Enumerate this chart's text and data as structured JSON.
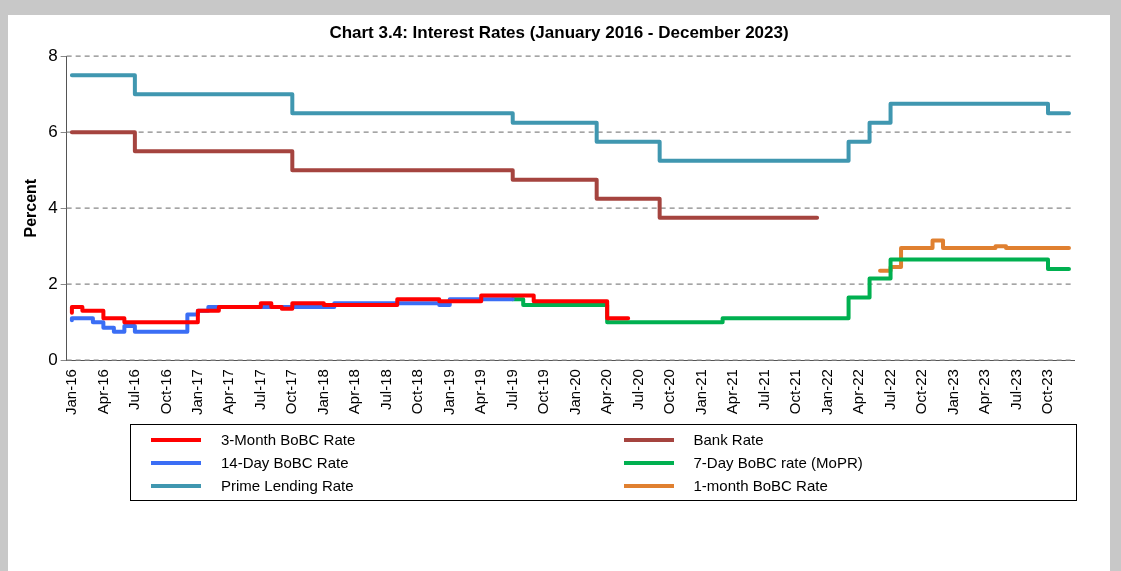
{
  "chart_data": {
    "type": "step",
    "title": "Chart 3.4: Interest Rates (January 2016 - December 2023)",
    "ylabel": "Percent",
    "categories": [
      "Jan-16",
      null,
      null,
      "Apr-16",
      null,
      null,
      "Jul-16",
      null,
      null,
      "Oct-16",
      null,
      null,
      "Jan-17",
      null,
      null,
      "Apr-17",
      null,
      null,
      "Jul-17",
      null,
      null,
      "Oct-17",
      null,
      null,
      "Jan-18",
      null,
      null,
      "Apr-18",
      null,
      null,
      "Jul-18",
      null,
      null,
      "Oct-18",
      null,
      null,
      "Jan-19",
      null,
      null,
      "Apr-19",
      null,
      null,
      "Jul-19",
      null,
      null,
      "Oct-19",
      null,
      null,
      "Jan-20",
      null,
      null,
      "Apr-20",
      null,
      null,
      "Jul-20",
      null,
      null,
      "Oct-20",
      null,
      null,
      "Jan-21",
      null,
      null,
      "Apr-21",
      null,
      null,
      "Jul-21",
      null,
      null,
      "Oct-21",
      null,
      null,
      "Jan-22",
      null,
      null,
      "Apr-22",
      null,
      null,
      "Jul-22",
      null,
      null,
      "Oct-22",
      null,
      null,
      "Jan-23",
      null,
      null,
      "Apr-23",
      null,
      null,
      "Jul-23",
      null,
      null,
      "Oct-23",
      null,
      null
    ],
    "ylim": [
      0,
      8
    ],
    "yticks": [
      0,
      2,
      4,
      6,
      8
    ],
    "grid": "y",
    "legend": "bottom",
    "series": [
      {
        "name": "3-Month BoBC Rate",
        "color": "#ff0000",
        "values": [
          1.25,
          1.4,
          1.3,
          1.3,
          1.1,
          1.1,
          1.0,
          1.0,
          1.0,
          1.0,
          1.0,
          1.0,
          1.0,
          1.3,
          1.3,
          1.4,
          1.4,
          1.4,
          1.4,
          1.5,
          1.4,
          1.35,
          1.5,
          1.5,
          1.5,
          1.45,
          1.45,
          1.45,
          1.45,
          1.45,
          1.45,
          1.45,
          1.6,
          1.6,
          1.6,
          1.6,
          1.55,
          1.55,
          1.55,
          1.55,
          1.7,
          1.7,
          1.7,
          1.7,
          1.7,
          1.55,
          1.55,
          1.55,
          1.55,
          1.55,
          1.55,
          1.55,
          1.1,
          1.1,
          null,
          null,
          null,
          null,
          null,
          null,
          null,
          null,
          null,
          null,
          null,
          null,
          null,
          null,
          null,
          null,
          null,
          null,
          null,
          null,
          null,
          null,
          null,
          null,
          null,
          null,
          null,
          null,
          null,
          null,
          null,
          null,
          null,
          null,
          null,
          null,
          null,
          null,
          null,
          null,
          null,
          null
        ]
      },
      {
        "name": "Bank Rate",
        "color": "#a5443f",
        "values": [
          6.0,
          6.0,
          6.0,
          6.0,
          6.0,
          6.0,
          6.0,
          5.5,
          5.5,
          5.5,
          5.5,
          5.5,
          5.5,
          5.5,
          5.5,
          5.5,
          5.5,
          5.5,
          5.5,
          5.5,
          5.5,
          5.5,
          5.0,
          5.0,
          5.0,
          5.0,
          5.0,
          5.0,
          5.0,
          5.0,
          5.0,
          5.0,
          5.0,
          5.0,
          5.0,
          5.0,
          5.0,
          5.0,
          5.0,
          5.0,
          5.0,
          5.0,
          5.0,
          4.75,
          4.75,
          4.75,
          4.75,
          4.75,
          4.75,
          4.75,
          4.75,
          4.25,
          4.25,
          4.25,
          4.25,
          4.25,
          4.25,
          3.75,
          3.75,
          3.75,
          3.75,
          3.75,
          3.75,
          3.75,
          3.75,
          3.75,
          3.75,
          3.75,
          3.75,
          3.75,
          3.75,
          3.75,
          null,
          null,
          null,
          null,
          null,
          null,
          null,
          null,
          null,
          null,
          null,
          null,
          null,
          null,
          null,
          null,
          null,
          null,
          null,
          null,
          null,
          null,
          null,
          null
        ]
      },
      {
        "name": "14-Day BoBC Rate",
        "color": "#3b6ef5",
        "values": [
          1.05,
          1.1,
          1.1,
          1.0,
          0.85,
          0.75,
          0.9,
          0.75,
          0.75,
          0.75,
          0.75,
          0.75,
          1.2,
          1.3,
          1.4,
          1.4,
          1.4,
          1.4,
          1.4,
          1.4,
          1.4,
          1.4,
          1.4,
          1.4,
          1.4,
          1.4,
          1.5,
          1.5,
          1.5,
          1.5,
          1.5,
          1.5,
          1.5,
          1.5,
          1.5,
          1.5,
          1.45,
          1.6,
          1.6,
          1.6,
          1.6,
          1.6,
          1.6,
          null,
          null,
          null,
          null,
          null,
          null,
          null,
          null,
          null,
          null,
          null,
          null,
          null,
          null,
          null,
          null,
          null,
          null,
          null,
          null,
          null,
          null,
          null,
          null,
          null,
          null,
          null,
          null,
          null,
          null,
          null,
          null,
          null,
          null,
          null,
          null,
          null,
          null,
          null,
          null,
          null,
          null,
          null,
          null,
          null,
          null,
          null,
          null,
          null,
          null,
          null,
          null,
          null
        ]
      },
      {
        "name": "7-Day BoBC rate (MoPR)",
        "color": "#00b050",
        "values": [
          null,
          null,
          null,
          null,
          null,
          null,
          null,
          null,
          null,
          null,
          null,
          null,
          null,
          null,
          null,
          null,
          null,
          null,
          null,
          null,
          null,
          null,
          null,
          null,
          null,
          null,
          null,
          null,
          null,
          null,
          null,
          null,
          null,
          null,
          null,
          null,
          null,
          null,
          null,
          null,
          null,
          null,
          1.6,
          1.6,
          1.45,
          1.45,
          1.45,
          1.45,
          1.45,
          1.45,
          1.45,
          1.45,
          1.0,
          1.0,
          1.0,
          1.0,
          1.0,
          1.0,
          1.0,
          1.0,
          1.0,
          1.0,
          1.0,
          1.1,
          1.1,
          1.1,
          1.1,
          1.1,
          1.1,
          1.1,
          1.1,
          1.1,
          1.1,
          1.1,
          1.1,
          1.65,
          1.65,
          2.15,
          2.15,
          2.65,
          2.65,
          2.65,
          2.65,
          2.65,
          2.65,
          2.65,
          2.65,
          2.65,
          2.65,
          2.65,
          2.65,
          2.65,
          2.65,
          2.65,
          2.4,
          2.4
        ]
      },
      {
        "name": "Prime Lending Rate",
        "color": "#4097b0",
        "values": [
          7.5,
          7.5,
          7.5,
          7.5,
          7.5,
          7.5,
          7.5,
          7.0,
          7.0,
          7.0,
          7.0,
          7.0,
          7.0,
          7.0,
          7.0,
          7.0,
          7.0,
          7.0,
          7.0,
          7.0,
          7.0,
          7.0,
          6.5,
          6.5,
          6.5,
          6.5,
          6.5,
          6.5,
          6.5,
          6.5,
          6.5,
          6.5,
          6.5,
          6.5,
          6.5,
          6.5,
          6.5,
          6.5,
          6.5,
          6.5,
          6.5,
          6.5,
          6.5,
          6.25,
          6.25,
          6.25,
          6.25,
          6.25,
          6.25,
          6.25,
          6.25,
          5.75,
          5.75,
          5.75,
          5.75,
          5.75,
          5.75,
          5.25,
          5.25,
          5.25,
          5.25,
          5.25,
          5.25,
          5.25,
          5.25,
          5.25,
          5.25,
          5.25,
          5.25,
          5.25,
          5.25,
          5.25,
          5.25,
          5.25,
          5.25,
          5.75,
          5.75,
          6.25,
          6.25,
          6.75,
          6.75,
          6.75,
          6.75,
          6.75,
          6.75,
          6.75,
          6.75,
          6.75,
          6.75,
          6.75,
          6.75,
          6.75,
          6.75,
          6.75,
          6.5,
          6.5
        ]
      },
      {
        "name": "1-month BoBC Rate",
        "color": "#e08030",
        "values": [
          null,
          null,
          null,
          null,
          null,
          null,
          null,
          null,
          null,
          null,
          null,
          null,
          null,
          null,
          null,
          null,
          null,
          null,
          null,
          null,
          null,
          null,
          null,
          null,
          null,
          null,
          null,
          null,
          null,
          null,
          null,
          null,
          null,
          null,
          null,
          null,
          null,
          null,
          null,
          null,
          null,
          null,
          null,
          null,
          null,
          null,
          null,
          null,
          null,
          null,
          null,
          null,
          null,
          null,
          null,
          null,
          null,
          null,
          null,
          null,
          null,
          null,
          null,
          null,
          null,
          null,
          null,
          null,
          null,
          null,
          null,
          null,
          null,
          null,
          null,
          null,
          null,
          2.35,
          2.35,
          2.45,
          2.95,
          2.95,
          2.95,
          3.15,
          2.95,
          2.95,
          2.95,
          2.95,
          2.95,
          3.0,
          2.95,
          2.95,
          2.95,
          2.95,
          2.95,
          2.95
        ]
      }
    ]
  }
}
